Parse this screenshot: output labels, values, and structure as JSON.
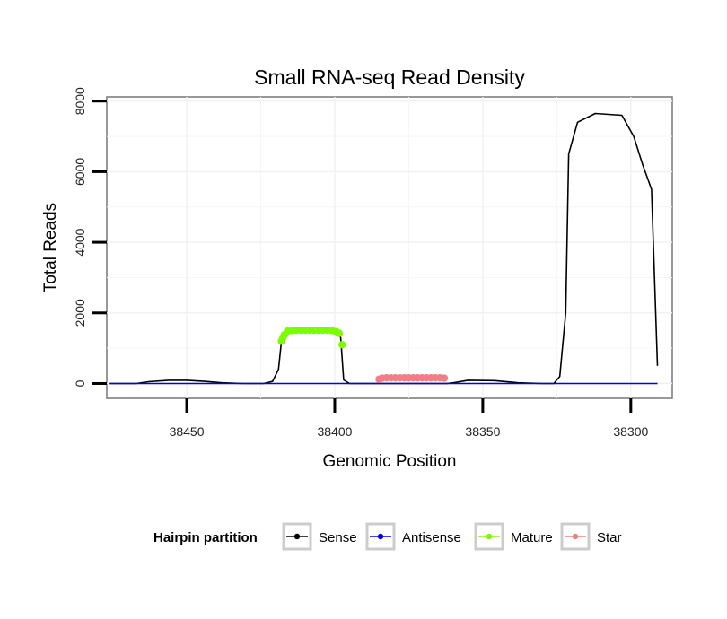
{
  "chart_data": {
    "type": "line",
    "title": "Small RNA-seq Read Density",
    "xlabel": "Genomic Position",
    "ylabel": "Total Reads",
    "x_reversed": true,
    "xlim": [
      38477,
      38286
    ],
    "ylim": [
      -420,
      8120
    ],
    "x_ticks": [
      38450,
      38400,
      38350,
      38300
    ],
    "x_tick_labels": [
      "38450",
      "38400",
      "38350",
      "38300"
    ],
    "y_ticks": [
      0,
      2000,
      4000,
      6000,
      8000
    ],
    "y_tick_labels": [
      "0",
      "2000",
      "4000",
      "6000",
      "8000"
    ],
    "grid": true,
    "legend": {
      "title": "Hairpin partition",
      "position": "bottom",
      "entries": [
        "Sense",
        "Antisense",
        "Mature",
        "Star"
      ]
    },
    "series": [
      {
        "name": "Sense",
        "color": "#000000",
        "style": "line",
        "points": [
          [
            38476,
            0
          ],
          [
            38467,
            0
          ],
          [
            38463,
            50
          ],
          [
            38456,
            90
          ],
          [
            38450,
            90
          ],
          [
            38444,
            60
          ],
          [
            38438,
            20
          ],
          [
            38431,
            0
          ],
          [
            38424,
            0
          ],
          [
            38421,
            60
          ],
          [
            38419,
            400
          ],
          [
            38418,
            1200
          ],
          [
            38416,
            1500
          ],
          [
            38399,
            1500
          ],
          [
            38398,
            1300
          ],
          [
            38397,
            100
          ],
          [
            38395,
            0
          ],
          [
            38390,
            0
          ],
          [
            38384,
            0
          ],
          [
            38362,
            0
          ],
          [
            38360,
            20
          ],
          [
            38355,
            90
          ],
          [
            38346,
            80
          ],
          [
            38338,
            20
          ],
          [
            38330,
            0
          ],
          [
            38326,
            0
          ],
          [
            38324,
            200
          ],
          [
            38322,
            2000
          ],
          [
            38321,
            6500
          ],
          [
            38318,
            7400
          ],
          [
            38312,
            7650
          ],
          [
            38303,
            7600
          ],
          [
            38299,
            7000
          ],
          [
            38296,
            6200
          ],
          [
            38293,
            5500
          ],
          [
            38291,
            500
          ]
        ]
      },
      {
        "name": "Antisense",
        "color": "#0000ee",
        "style": "line",
        "points": [
          [
            38476,
            0
          ],
          [
            38291,
            0
          ]
        ]
      },
      {
        "name": "Mature",
        "color": "#7cfc00",
        "style": "points",
        "points": [
          [
            38418,
            1200
          ],
          [
            38417.5,
            1300
          ],
          [
            38417,
            1380
          ],
          [
            38416,
            1480
          ],
          [
            38414.5,
            1500
          ],
          [
            38413,
            1510
          ],
          [
            38411.5,
            1510
          ],
          [
            38410,
            1510
          ],
          [
            38408.5,
            1510
          ],
          [
            38407,
            1510
          ],
          [
            38405.5,
            1510
          ],
          [
            38404,
            1510
          ],
          [
            38402.5,
            1510
          ],
          [
            38401,
            1500
          ],
          [
            38399.5,
            1470
          ],
          [
            38398.5,
            1420
          ],
          [
            38397.5,
            1100
          ]
        ]
      },
      {
        "name": "Star",
        "color": "#f08080",
        "style": "points",
        "points": [
          [
            38385,
            120
          ],
          [
            38384,
            150
          ],
          [
            38382.5,
            160
          ],
          [
            38381,
            160
          ],
          [
            38379.5,
            160
          ],
          [
            38378,
            160
          ],
          [
            38376.5,
            160
          ],
          [
            38375,
            160
          ],
          [
            38373.5,
            160
          ],
          [
            38372,
            160
          ],
          [
            38370.5,
            160
          ],
          [
            38369,
            160
          ],
          [
            38367.5,
            160
          ],
          [
            38366,
            160
          ],
          [
            38364.5,
            160
          ],
          [
            38363,
            150
          ]
        ]
      }
    ]
  }
}
